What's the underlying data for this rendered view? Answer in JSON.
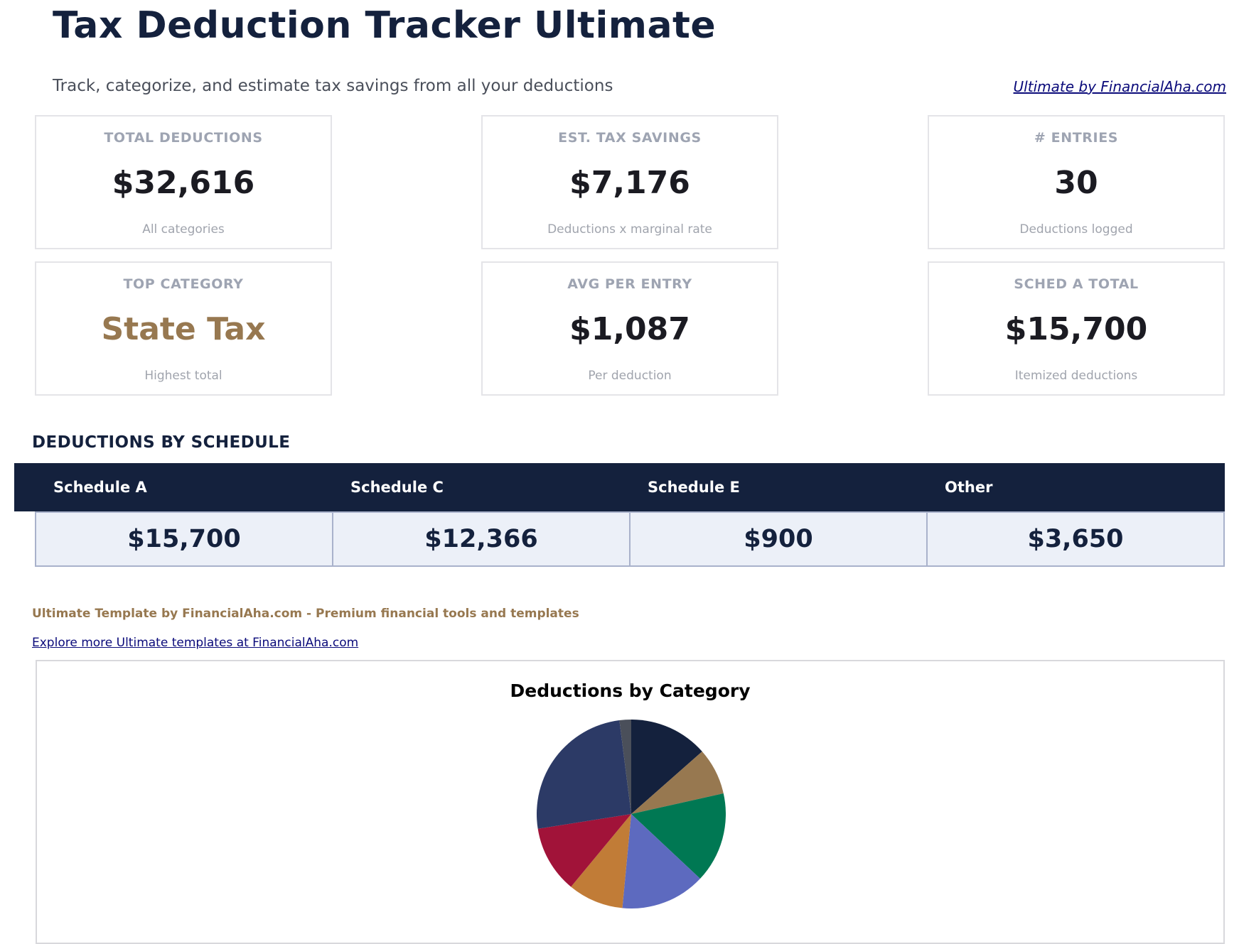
{
  "header": {
    "title": "Tax Deduction Tracker Ultimate",
    "subtitle": "Track, categorize, and estimate tax savings from all your deductions",
    "brand_link": "Ultimate by FinancialAha.com"
  },
  "kpis": [
    {
      "label": "TOTAL DEDUCTIONS",
      "value": "$32,616",
      "caption": "All categories"
    },
    {
      "label": "EST. TAX SAVINGS",
      "value": "$7,176",
      "caption": "Deductions x marginal rate"
    },
    {
      "label": "# ENTRIES",
      "value": "30",
      "caption": "Deductions logged"
    },
    {
      "label": "TOP CATEGORY",
      "value": "State Tax",
      "caption": "Highest total"
    },
    {
      "label": "AVG PER ENTRY",
      "value": "$1,087",
      "caption": "Per deduction"
    },
    {
      "label": "SCHED A TOTAL",
      "value": "$15,700",
      "caption": "Itemized deductions"
    }
  ],
  "schedule_section": {
    "heading": "DEDUCTIONS BY SCHEDULE",
    "columns": [
      "Schedule A",
      "Schedule C",
      "Schedule E",
      "Other"
    ],
    "values": [
      "$15,700",
      "$12,366",
      "$900",
      "$3,650"
    ]
  },
  "footer": {
    "note": "Ultimate Template by FinancialAha.com - Premium financial tools and templates",
    "explore_link": "Explore more Ultimate templates at FinancialAha.com"
  },
  "colors": {
    "navy": "#14213d",
    "gold": "#977850",
    "light_bg": "#ecf0f8"
  },
  "chart_data": {
    "type": "pie",
    "title": "Deductions by Category",
    "start_angle_deg": 0,
    "slices": [
      {
        "share": 0.135,
        "color": "#14213d"
      },
      {
        "share": 0.08,
        "color": "#977850"
      },
      {
        "share": 0.155,
        "color": "#007853"
      },
      {
        "share": 0.145,
        "color": "#5d6abf"
      },
      {
        "share": 0.095,
        "color": "#c17c37"
      },
      {
        "share": 0.115,
        "color": "#a11339"
      },
      {
        "share": 0.255,
        "color": "#2c3a66"
      },
      {
        "share": 0.02,
        "color": "#4a4f5a"
      }
    ]
  }
}
